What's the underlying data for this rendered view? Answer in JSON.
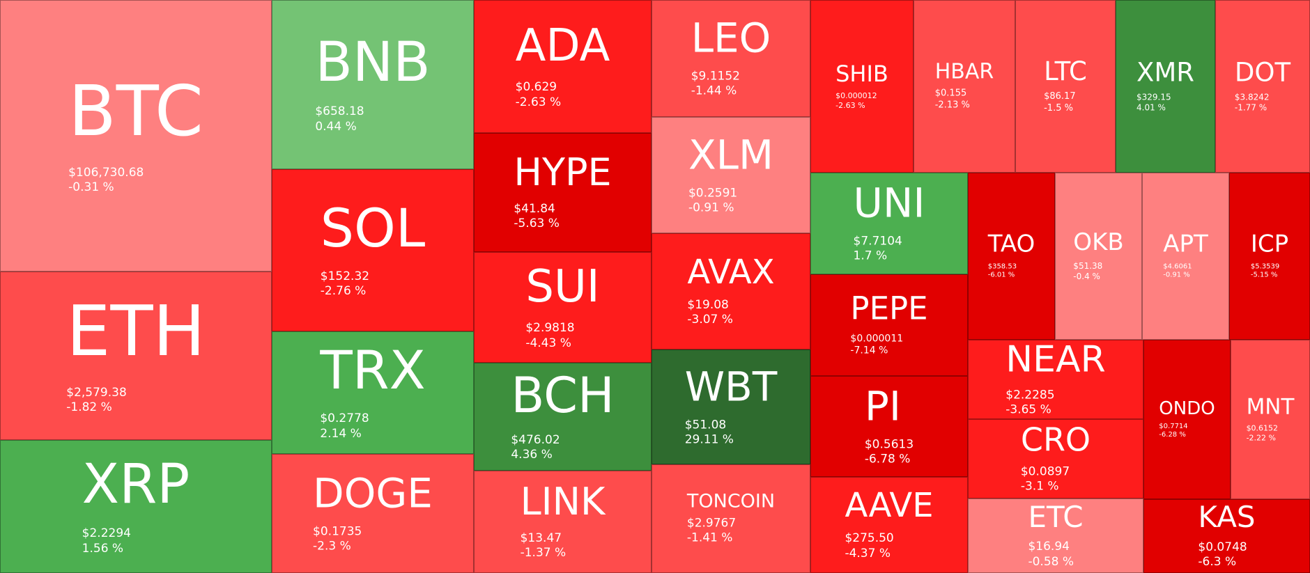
{
  "colors": {
    "light_red": "#fe8080",
    "mid_red": "#fe4c4c",
    "red": "#fe1c1c",
    "deep_red": "#e10000",
    "light_green": "#74c374",
    "green": "#4caf50",
    "mid_green": "#3d8f3d",
    "dark_green": "#2e6b2e"
  },
  "tiles": [
    {
      "symbol": "BTC",
      "price": "$106,730.68",
      "change": "-0.31 %",
      "change_value": -0.31,
      "color": "light_red"
    },
    {
      "symbol": "ETH",
      "price": "$2,579.38",
      "change": "-1.82 %",
      "change_value": -1.82,
      "color": "mid_red"
    },
    {
      "symbol": "XRP",
      "price": "$2.2294",
      "change": "1.56 %",
      "change_value": 1.56,
      "color": "green"
    },
    {
      "symbol": "BNB",
      "price": "$658.18",
      "change": "0.44 %",
      "change_value": 0.44,
      "color": "light_green"
    },
    {
      "symbol": "SOL",
      "price": "$152.32",
      "change": "-2.76 %",
      "change_value": -2.76,
      "color": "red"
    },
    {
      "symbol": "TRX",
      "price": "$0.2778",
      "change": "2.14 %",
      "change_value": 2.14,
      "color": "green"
    },
    {
      "symbol": "DOGE",
      "price": "$0.1735",
      "change": "-2.3 %",
      "change_value": -2.3,
      "color": "mid_red"
    },
    {
      "symbol": "ADA",
      "price": "$0.629",
      "change": "-2.63 %",
      "change_value": -2.63,
      "color": "red"
    },
    {
      "symbol": "HYPE",
      "price": "$41.84",
      "change": "-5.63 %",
      "change_value": -5.63,
      "color": "deep_red"
    },
    {
      "symbol": "SUI",
      "price": "$2.9818",
      "change": "-4.43 %",
      "change_value": -4.43,
      "color": "red"
    },
    {
      "symbol": "BCH",
      "price": "$476.02",
      "change": "4.36 %",
      "change_value": 4.36,
      "color": "mid_green"
    },
    {
      "symbol": "LINK",
      "price": "$13.47",
      "change": "-1.37 %",
      "change_value": -1.37,
      "color": "mid_red"
    },
    {
      "symbol": "LEO",
      "price": "$9.1152",
      "change": "-1.44 %",
      "change_value": -1.44,
      "color": "mid_red"
    },
    {
      "symbol": "XLM",
      "price": "$0.2591",
      "change": "-0.91 %",
      "change_value": -0.91,
      "color": "light_red"
    },
    {
      "symbol": "AVAX",
      "price": "$19.08",
      "change": "-3.07 %",
      "change_value": -3.07,
      "color": "red"
    },
    {
      "symbol": "WBT",
      "price": "$51.08",
      "change": "29.11 %",
      "change_value": 29.11,
      "color": "dark_green"
    },
    {
      "symbol": "TONCOIN",
      "price": "$2.9767",
      "change": "-1.41 %",
      "change_value": -1.41,
      "color": "mid_red"
    },
    {
      "symbol": "SHIB",
      "price": "$0.000012",
      "change": "-2.63 %",
      "change_value": -2.63,
      "color": "red"
    },
    {
      "symbol": "HBAR",
      "price": "$0.155",
      "change": "-2.13 %",
      "change_value": -2.13,
      "color": "mid_red"
    },
    {
      "symbol": "LTC",
      "price": "$86.17",
      "change": "-1.5 %",
      "change_value": -1.5,
      "color": "mid_red"
    },
    {
      "symbol": "XMR",
      "price": "$329.15",
      "change": "4.01 %",
      "change_value": 4.01,
      "color": "mid_green"
    },
    {
      "symbol": "DOT",
      "price": "$3.8242",
      "change": "-1.77 %",
      "change_value": -1.77,
      "color": "mid_red"
    },
    {
      "symbol": "UNI",
      "price": "$7.7104",
      "change": "1.7 %",
      "change_value": 1.7,
      "color": "green"
    },
    {
      "symbol": "PEPE",
      "price": "$0.000011",
      "change": "-7.14 %",
      "change_value": -7.14,
      "color": "deep_red"
    },
    {
      "symbol": "PI",
      "price": "$0.5613",
      "change": "-6.78 %",
      "change_value": -6.78,
      "color": "deep_red"
    },
    {
      "symbol": "AAVE",
      "price": "$275.50",
      "change": "-4.37 %",
      "change_value": -4.37,
      "color": "red"
    },
    {
      "symbol": "TAO",
      "price": "$358.53",
      "change": "-6.01 %",
      "change_value": -6.01,
      "color": "deep_red"
    },
    {
      "symbol": "OKB",
      "price": "$51.38",
      "change": "-0.4 %",
      "change_value": -0.4,
      "color": "light_red"
    },
    {
      "symbol": "APT",
      "price": "$4.6061",
      "change": "-0.91 %",
      "change_value": -0.91,
      "color": "light_red"
    },
    {
      "symbol": "ICP",
      "price": "$5.3539",
      "change": "-5.15 %",
      "change_value": -5.15,
      "color": "deep_red"
    },
    {
      "symbol": "NEAR",
      "price": "$2.2285",
      "change": "-3.65 %",
      "change_value": -3.65,
      "color": "red"
    },
    {
      "symbol": "CRO",
      "price": "$0.0897",
      "change": "-3.1 %",
      "change_value": -3.1,
      "color": "red"
    },
    {
      "symbol": "ETC",
      "price": "$16.94",
      "change": "-0.58 %",
      "change_value": -0.58,
      "color": "light_red"
    },
    {
      "symbol": "ONDO",
      "price": "$0.7714",
      "change": "-6.28 %",
      "change_value": -6.28,
      "color": "deep_red"
    },
    {
      "symbol": "MNT",
      "price": "$0.6152",
      "change": "-2.22 %",
      "change_value": -2.22,
      "color": "mid_red"
    },
    {
      "symbol": "KAS",
      "price": "$0.0748",
      "change": "-6.3 %",
      "change_value": -6.3,
      "color": "deep_red"
    }
  ]
}
